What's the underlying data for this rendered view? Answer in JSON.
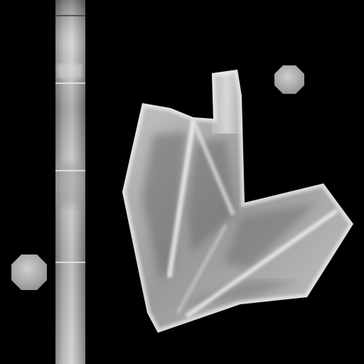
{
  "texture_atlas": {
    "background_color": "#000000",
    "surface_light": "#e6e6e6",
    "surface_mid": "#a8a8a8",
    "surface_dark": "#5a5a5a",
    "pieces": [
      {
        "name": "vertical-strip"
      },
      {
        "name": "octagon-small-top-right"
      },
      {
        "name": "octagon-small-bottom-left"
      },
      {
        "name": "folded-wing-piece"
      }
    ]
  }
}
